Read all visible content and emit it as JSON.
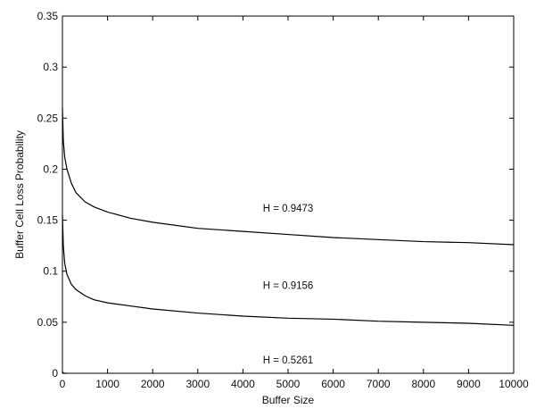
{
  "chart_data": {
    "type": "line",
    "title": "",
    "xlabel": "Buffer Size",
    "ylabel": "Buffer Cell Loss Probability",
    "xlim": [
      0,
      10000
    ],
    "ylim": [
      0,
      0.35
    ],
    "xticks": [
      0,
      1000,
      2000,
      3000,
      4000,
      5000,
      6000,
      7000,
      8000,
      9000,
      10000
    ],
    "yticks": [
      0,
      0.05,
      0.1,
      0.15,
      0.2,
      0.25,
      0.3,
      0.35
    ],
    "xtick_labels": [
      "0",
      "1000",
      "2000",
      "3000",
      "4000",
      "5000",
      "6000",
      "7000",
      "8000",
      "9000",
      "10000"
    ],
    "ytick_labels": [
      "0",
      "0.05",
      "0.1",
      "0.15",
      "0.2",
      "0.25",
      "0.3",
      "0.35"
    ],
    "grid": false,
    "legend": "none",
    "series": [
      {
        "x": [
          0,
          20,
          50,
          100,
          200,
          300,
          500,
          700,
          1000,
          1500,
          2000,
          3000,
          4000,
          5000,
          6000,
          7000,
          8000,
          9000,
          10000
        ],
        "values": [
          0.26,
          0.228,
          0.212,
          0.2,
          0.186,
          0.177,
          0.168,
          0.163,
          0.158,
          0.152,
          0.148,
          0.142,
          0.139,
          0.136,
          0.133,
          0.131,
          0.129,
          0.128,
          0.126
        ]
      },
      {
        "x": [
          0,
          20,
          50,
          100,
          200,
          300,
          500,
          700,
          1000,
          1500,
          2000,
          3000,
          4000,
          5000,
          6000,
          7000,
          8000,
          9000,
          10000
        ],
        "values": [
          0.155,
          0.125,
          0.108,
          0.097,
          0.087,
          0.082,
          0.076,
          0.072,
          0.069,
          0.066,
          0.063,
          0.059,
          0.056,
          0.054,
          0.053,
          0.051,
          0.05,
          0.049,
          0.047
        ]
      },
      {
        "x": [
          0,
          10,
          30,
          60,
          100
        ],
        "values": [
          0.0,
          0.001,
          0.0,
          0.0,
          0.0
        ]
      }
    ],
    "annotations": [
      {
        "text": "H = 0.9473",
        "x": 5000,
        "y": 0.1585
      },
      {
        "text": "H = 0.9156",
        "x": 5000,
        "y": 0.0825
      },
      {
        "text": "H = 0.5261",
        "x": 5000,
        "y": 0.0095
      }
    ]
  }
}
